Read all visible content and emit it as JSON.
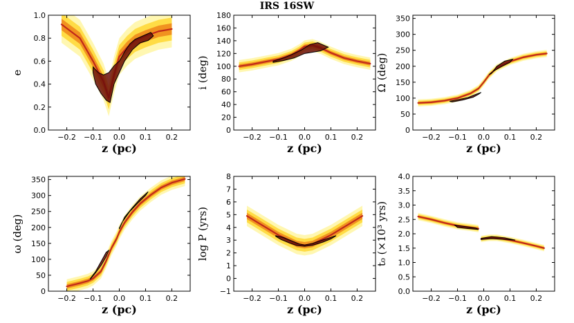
{
  "figure": {
    "title": "IRS 16SW"
  },
  "colors": {
    "pale": "#fff6a8",
    "yellow": "#ffd83a",
    "orange": "#f08a1c",
    "red": "#c0281a",
    "dark": "#6b0e0c",
    "contour": "#000000"
  },
  "chart_data": [
    {
      "type": "heatmap",
      "id": "e",
      "xlabel": "z (pc)",
      "ylabel": "e",
      "xlim": [
        -0.27,
        0.27
      ],
      "ylim": [
        0.0,
        1.0
      ],
      "xticks": [
        -0.2,
        -0.1,
        0.0,
        0.1,
        0.2
      ],
      "xtick_labels": [
        "−0.2",
        "−0.1",
        "0.0",
        "0.1",
        "0.2"
      ],
      "yticks": [
        0.0,
        0.2,
        0.4,
        0.6,
        0.8,
        1.0
      ],
      "ytick_labels": [
        "0.0",
        "0.2",
        "0.4",
        "0.6",
        "0.8",
        "1.0"
      ],
      "density_curve": {
        "x": [
          -0.22,
          -0.15,
          -0.1,
          -0.06,
          -0.04,
          -0.02,
          0.0,
          0.03,
          0.06,
          0.1,
          0.15,
          0.2
        ],
        "y": [
          0.92,
          0.8,
          0.6,
          0.42,
          0.28,
          0.48,
          0.64,
          0.72,
          0.78,
          0.82,
          0.86,
          0.88
        ],
        "halfwidth": 0.1
      },
      "contour": [
        [
          -0.1,
          0.55
        ],
        [
          -0.08,
          0.5
        ],
        [
          -0.06,
          0.48
        ],
        [
          -0.04,
          0.5
        ],
        [
          -0.02,
          0.56
        ],
        [
          0.0,
          0.6
        ],
        [
          0.02,
          0.68
        ],
        [
          0.04,
          0.75
        ],
        [
          0.06,
          0.79
        ],
        [
          0.09,
          0.82
        ],
        [
          0.12,
          0.85
        ],
        [
          0.13,
          0.82
        ],
        [
          0.11,
          0.78
        ],
        [
          0.08,
          0.76
        ],
        [
          0.05,
          0.7
        ],
        [
          0.02,
          0.6
        ],
        [
          0.0,
          0.5
        ],
        [
          -0.02,
          0.4
        ],
        [
          -0.035,
          0.24
        ],
        [
          -0.05,
          0.26
        ],
        [
          -0.07,
          0.32
        ],
        [
          -0.09,
          0.4
        ],
        [
          -0.1,
          0.5
        ]
      ]
    },
    {
      "type": "heatmap",
      "id": "i",
      "title": "IRS 16SW",
      "xlabel": "z (pc)",
      "ylabel": "i (deg)",
      "xlim": [
        -0.27,
        0.27
      ],
      "ylim": [
        0,
        180
      ],
      "xticks": [
        -0.2,
        -0.1,
        0.0,
        0.1,
        0.2
      ],
      "xtick_labels": [
        "−0.2",
        "−0.1",
        "0.0",
        "0.1",
        "0.2"
      ],
      "yticks": [
        0,
        20,
        40,
        60,
        80,
        100,
        120,
        140,
        160,
        180
      ],
      "ytick_labels": [
        "0",
        "20",
        "40",
        "60",
        "80",
        "100",
        "120",
        "140",
        "160",
        "180"
      ],
      "density_curve": {
        "x": [
          -0.25,
          -0.2,
          -0.15,
          -0.1,
          -0.05,
          -0.02,
          0.0,
          0.03,
          0.06,
          0.1,
          0.15,
          0.2,
          0.25
        ],
        "y": [
          100,
          103,
          107,
          111,
          118,
          125,
          131,
          133,
          129,
          121,
          113,
          108,
          104
        ],
        "halfwidth": 6
      },
      "contour": [
        [
          -0.12,
          108
        ],
        [
          -0.08,
          113
        ],
        [
          -0.04,
          120
        ],
        [
          -0.01,
          126
        ],
        [
          0.02,
          134
        ],
        [
          0.05,
          137
        ],
        [
          0.09,
          130
        ],
        [
          0.06,
          124
        ],
        [
          0.03,
          122
        ],
        [
          0.0,
          120
        ],
        [
          -0.04,
          113
        ],
        [
          -0.08,
          109
        ],
        [
          -0.12,
          106
        ]
      ]
    },
    {
      "type": "heatmap",
      "id": "Omega",
      "xlabel": "z (pc)",
      "ylabel": "Ω (deg)",
      "xlim": [
        -0.27,
        0.27
      ],
      "ylim": [
        0,
        360
      ],
      "xticks": [
        -0.2,
        -0.1,
        0.0,
        0.1,
        0.2
      ],
      "xtick_labels": [
        "−0.2",
        "−0.1",
        "0.0",
        "0.1",
        "0.2"
      ],
      "yticks": [
        0,
        50,
        100,
        150,
        200,
        250,
        300,
        350
      ],
      "ytick_labels": [
        "0",
        "50",
        "100",
        "150",
        "200",
        "250",
        "300",
        "350"
      ],
      "density_curve": {
        "x": [
          -0.25,
          -0.2,
          -0.15,
          -0.1,
          -0.05,
          -0.02,
          0.0,
          0.02,
          0.05,
          0.1,
          0.15,
          0.2,
          0.24
        ],
        "y": [
          85,
          87,
          92,
          100,
          115,
          130,
          150,
          172,
          195,
          215,
          228,
          236,
          240
        ],
        "halfwidth": 7
      },
      "contour": [
        [
          -0.12,
          88
        ],
        [
          -0.08,
          94
        ],
        [
          -0.04,
          103
        ],
        [
          -0.02,
          112
        ],
        [
          -0.01,
          118
        ],
        [
          -0.03,
          112
        ],
        [
          -0.06,
          102
        ],
        [
          -0.1,
          95
        ],
        [
          -0.13,
          90
        ]
      ],
      "contour2": [
        [
          0.03,
          178
        ],
        [
          0.05,
          200
        ],
        [
          0.08,
          216
        ],
        [
          0.11,
          222
        ],
        [
          0.1,
          212
        ],
        [
          0.07,
          200
        ],
        [
          0.04,
          186
        ],
        [
          0.02,
          174
        ]
      ]
    },
    {
      "type": "heatmap",
      "id": "omega",
      "xlabel": "z (pc)",
      "ylabel": "ω (deg)",
      "xlim": [
        -0.27,
        0.27
      ],
      "ylim": [
        0,
        360
      ],
      "xticks": [
        -0.2,
        -0.1,
        0.0,
        0.1,
        0.2
      ],
      "xtick_labels": [
        "−0.2",
        "−0.1",
        "0.0",
        "0.1",
        "0.2"
      ],
      "yticks": [
        0,
        50,
        100,
        150,
        200,
        250,
        300,
        350
      ],
      "ytick_labels": [
        "0",
        "50",
        "100",
        "150",
        "200",
        "250",
        "300",
        "350"
      ],
      "density_curve": {
        "x": [
          -0.2,
          -0.15,
          -0.12,
          -0.1,
          -0.07,
          -0.05,
          -0.03,
          -0.01,
          0.0,
          0.02,
          0.05,
          0.08,
          0.12,
          0.16,
          0.2,
          0.25
        ],
        "y": [
          15,
          25,
          32,
          40,
          62,
          95,
          135,
          165,
          185,
          215,
          248,
          275,
          302,
          325,
          340,
          352
        ],
        "halfwidth": 14
      },
      "contour": [
        [
          -0.11,
          38
        ],
        [
          -0.09,
          58
        ],
        [
          -0.07,
          80
        ],
        [
          -0.05,
          108
        ],
        [
          -0.04,
          128
        ],
        [
          -0.05,
          122
        ],
        [
          -0.07,
          92
        ],
        [
          -0.09,
          62
        ],
        [
          -0.11,
          40
        ]
      ],
      "contour2": [
        [
          0.0,
          195
        ],
        [
          0.02,
          232
        ],
        [
          0.05,
          262
        ],
        [
          0.08,
          290
        ],
        [
          0.11,
          312
        ],
        [
          0.1,
          300
        ],
        [
          0.07,
          276
        ],
        [
          0.04,
          250
        ],
        [
          0.01,
          215
        ],
        [
          0.0,
          198
        ]
      ]
    },
    {
      "type": "heatmap",
      "id": "logP",
      "xlabel": "z (pc)",
      "ylabel": "log P (yrs)",
      "xlim": [
        -0.27,
        0.27
      ],
      "ylim": [
        -1,
        8
      ],
      "xticks": [
        -0.2,
        -0.1,
        0.0,
        0.1,
        0.2
      ],
      "xtick_labels": [
        "−0.2",
        "−0.1",
        "0.0",
        "0.1",
        "0.2"
      ],
      "yticks": [
        -1,
        0,
        1,
        2,
        3,
        4,
        5,
        6,
        7,
        8
      ],
      "ytick_labels": [
        "−1",
        "0",
        "1",
        "2",
        "3",
        "4",
        "5",
        "6",
        "7",
        "8"
      ],
      "density_curve": {
        "x": [
          -0.22,
          -0.18,
          -0.14,
          -0.1,
          -0.06,
          -0.03,
          0.0,
          0.03,
          0.06,
          0.1,
          0.14,
          0.18,
          0.22
        ],
        "y": [
          4.9,
          4.4,
          3.9,
          3.4,
          3.0,
          2.7,
          2.6,
          2.7,
          3.0,
          3.4,
          3.9,
          4.4,
          4.9
        ],
        "halfwidth": 0.5
      },
      "contour": [
        [
          -0.11,
          3.35
        ],
        [
          -0.08,
          3.2
        ],
        [
          -0.05,
          2.95
        ],
        [
          -0.02,
          2.7
        ],
        [
          0.0,
          2.62
        ],
        [
          0.03,
          2.75
        ],
        [
          0.06,
          2.95
        ],
        [
          0.09,
          3.15
        ],
        [
          0.12,
          3.35
        ],
        [
          0.1,
          3.1
        ],
        [
          0.07,
          2.85
        ],
        [
          0.03,
          2.6
        ],
        [
          0.0,
          2.52
        ],
        [
          -0.03,
          2.58
        ],
        [
          -0.06,
          2.8
        ],
        [
          -0.09,
          3.05
        ],
        [
          -0.11,
          3.3
        ]
      ]
    },
    {
      "type": "heatmap",
      "id": "t0",
      "xlabel": "z (pc)",
      "ylabel": "t₀ (×10³ yrs)",
      "xlim": [
        -0.27,
        0.27
      ],
      "ylim": [
        0.0,
        4.0
      ],
      "xticks": [
        -0.2,
        -0.1,
        0.0,
        0.1,
        0.2
      ],
      "xtick_labels": [
        "−0.2",
        "−0.1",
        "0.0",
        "0.1",
        "0.2"
      ],
      "yticks": [
        0.0,
        0.5,
        1.0,
        1.5,
        2.0,
        2.5,
        3.0,
        3.5,
        4.0
      ],
      "ytick_labels": [
        "0.0",
        "0.5",
        "1.0",
        "1.5",
        "2.0",
        "2.5",
        "3.0",
        "3.5",
        "4.0"
      ],
      "density_curve": {
        "x": [
          -0.25,
          -0.2,
          -0.15,
          -0.1,
          -0.05,
          -0.02
        ],
        "y": [
          2.6,
          2.5,
          2.38,
          2.28,
          2.22,
          2.18
        ],
        "halfwidth": 0.08
      },
      "density_curve2": {
        "x": [
          -0.01,
          0.02,
          0.05,
          0.1,
          0.15,
          0.2,
          0.23
        ],
        "y": [
          1.82,
          1.86,
          1.86,
          1.78,
          1.68,
          1.57,
          1.5
        ],
        "halfwidth": 0.07
      },
      "contour": [
        [
          -0.11,
          2.3
        ],
        [
          -0.07,
          2.25
        ],
        [
          -0.03,
          2.2
        ],
        [
          -0.02,
          2.15
        ],
        [
          -0.06,
          2.18
        ],
        [
          -0.1,
          2.22
        ]
      ],
      "contour2": [
        [
          -0.01,
          1.84
        ],
        [
          0.03,
          1.9
        ],
        [
          0.08,
          1.86
        ],
        [
          0.12,
          1.78
        ],
        [
          0.08,
          1.8
        ],
        [
          0.03,
          1.83
        ],
        [
          -0.01,
          1.8
        ]
      ]
    }
  ]
}
